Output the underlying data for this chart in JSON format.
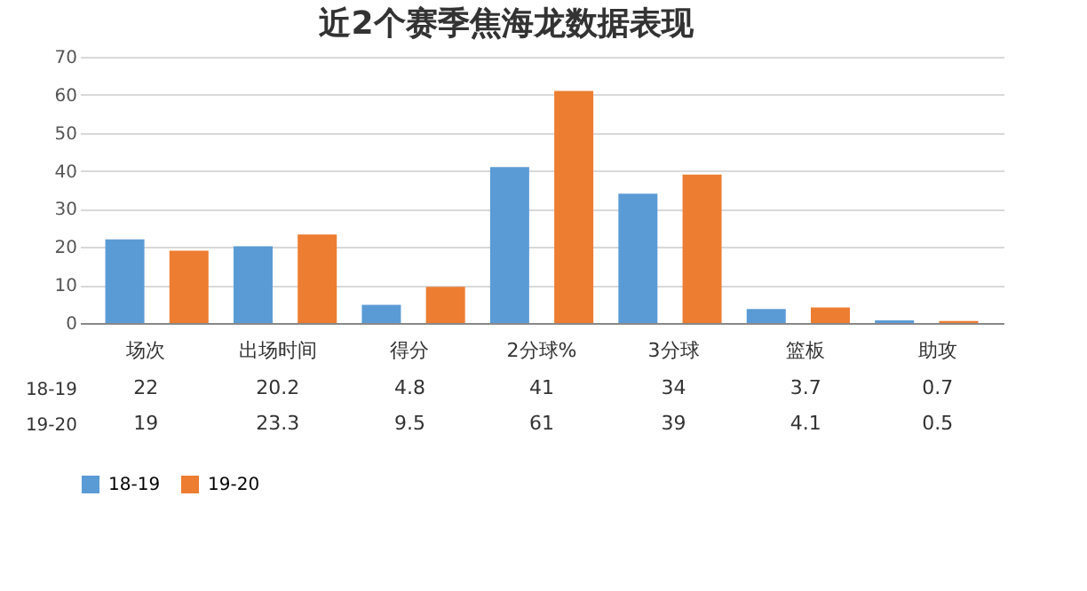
{
  "chart_data": {
    "type": "bar",
    "title": "近2个赛季焦海龙数据表现",
    "categories": [
      "场次",
      "出场时间",
      "得分",
      "2分球%",
      "3分球",
      "篮板",
      "助攻"
    ],
    "series": [
      {
        "name": "18-19",
        "color": "#5b9bd5",
        "values": [
          22,
          20.2,
          4.8,
          41,
          34,
          3.7,
          0.7
        ],
        "value_labels": [
          "22",
          "20.2",
          "4.8",
          "41",
          "34",
          "3.7",
          "0.7"
        ]
      },
      {
        "name": "19-20",
        "color": "#ed7d31",
        "values": [
          19,
          23.3,
          9.5,
          61,
          39,
          4.1,
          0.5
        ],
        "value_labels": [
          "19",
          "23.3",
          "9.5",
          "61",
          "39",
          "4.1",
          "0.5"
        ]
      }
    ],
    "ylim": [
      0,
      70
    ],
    "yticks": [
      0,
      10,
      20,
      30,
      40,
      50,
      60,
      70
    ],
    "grid": "y",
    "legend": "bottom"
  }
}
